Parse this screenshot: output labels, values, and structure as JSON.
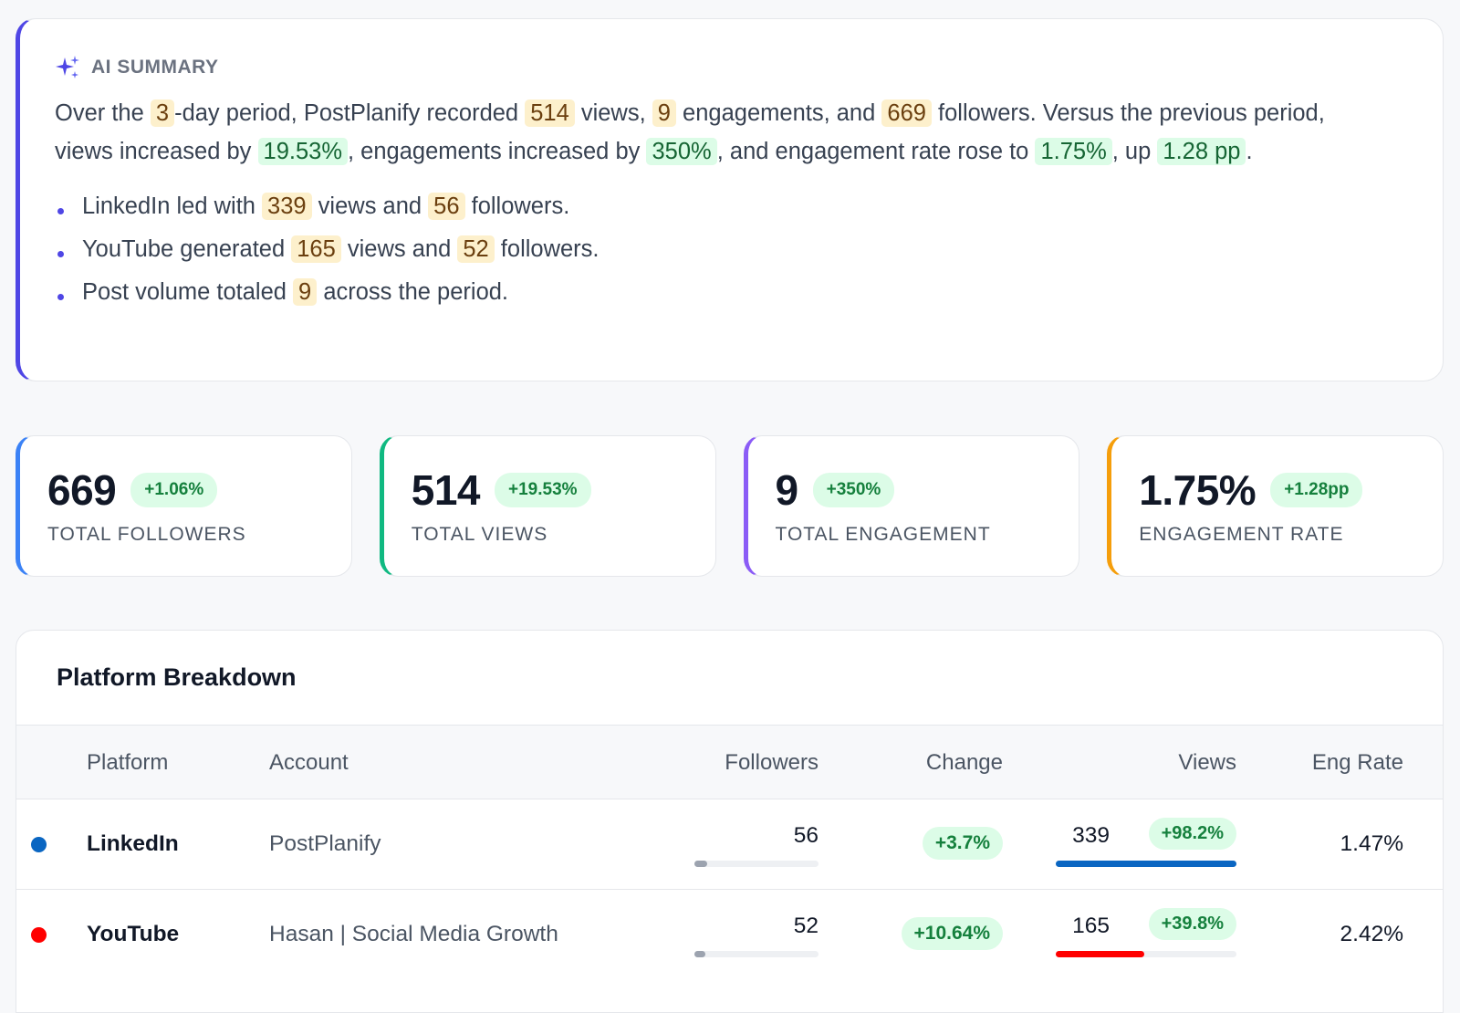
{
  "summary": {
    "icon": "sparkles-icon",
    "title": "AI SUMMARY",
    "paragraph": {
      "t1": "Over the ",
      "days": "3",
      "t2": "-day period, PostPlanify recorded ",
      "views": "514",
      "t3": " views, ",
      "engagements": "9",
      "t4": " engagements, and ",
      "followers": "669",
      "t5": " followers. Versus the previous period, views increased by ",
      "views_change": "19.53%",
      "t6": ", engagements increased by ",
      "eng_change": "350%",
      "t7": ", and engagement rate rose to ",
      "eng_rate": "1.75%",
      "t8": ", up ",
      "rate_change": "1.28 pp",
      "t9": "."
    },
    "bullets": [
      {
        "a": "LinkedIn led with ",
        "v1": "339",
        "b": " views and ",
        "v2": "56",
        "c": " followers."
      },
      {
        "a": "YouTube generated ",
        "v1": "165",
        "b": " views and ",
        "v2": "52",
        "c": " followers."
      },
      {
        "a": "Post volume totaled ",
        "v1": "9",
        "b": " across the period."
      }
    ]
  },
  "kpis": [
    {
      "value": "669",
      "change": "+1.06%",
      "label": "TOTAL FOLLOWERS",
      "color": "#3b82f6"
    },
    {
      "value": "514",
      "change": "+19.53%",
      "label": "TOTAL VIEWS",
      "color": "#10b981"
    },
    {
      "value": "9",
      "change": "+350%",
      "label": "TOTAL ENGAGEMENT",
      "color": "#8b5cf6"
    },
    {
      "value": "1.75%",
      "change": "+1.28pp",
      "label": "ENGAGEMENT RATE",
      "color": "#f59e0b"
    }
  ],
  "breakdown": {
    "title": "Platform Breakdown",
    "columns": [
      "Platform",
      "Account",
      "Followers",
      "Change",
      "Views",
      "Eng Rate"
    ],
    "rows": [
      {
        "platform": "LinkedIn",
        "account": "PostPlanify",
        "followers": "56",
        "followers_share": 0.1,
        "change": "+3.7%",
        "views": "339",
        "views_change": "+98.2%",
        "views_share": 1.0,
        "eng_rate": "1.47%",
        "color": "#0a66c2"
      },
      {
        "platform": "YouTube",
        "account": "Hasan | Social Media Growth",
        "followers": "52",
        "followers_share": 0.09,
        "change": "+10.64%",
        "views": "165",
        "views_change": "+39.8%",
        "views_share": 0.49,
        "eng_rate": "2.42%",
        "color": "#ff0000"
      }
    ]
  }
}
